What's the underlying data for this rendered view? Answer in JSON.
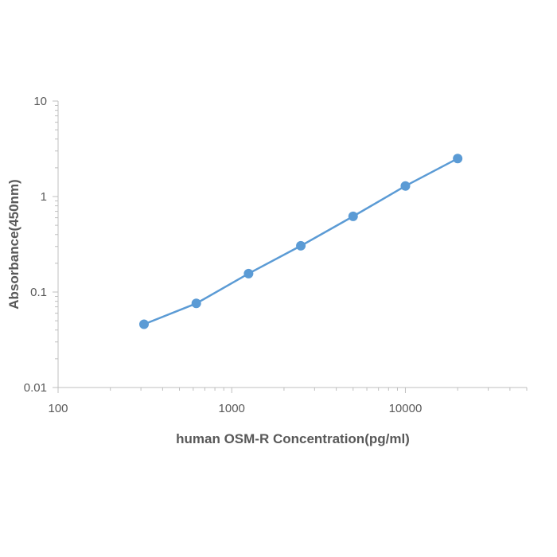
{
  "chart_data": {
    "type": "line",
    "title": "",
    "xlabel": "human OSM-R Concentration(pg/ml)",
    "ylabel": "Absorbance(450nm)",
    "x_scale": "log",
    "y_scale": "log",
    "xlim": [
      100,
      50000
    ],
    "ylim": [
      0.01,
      10
    ],
    "x_ticks": [
      "100",
      "1000",
      "10000"
    ],
    "y_ticks": [
      "0.01",
      "0.1",
      "1",
      "10"
    ],
    "grid": false,
    "legend": "none",
    "series": [
      {
        "color": "#5b9bd5",
        "x": [
          312.5,
          625,
          1250,
          2500,
          5000,
          10000,
          20000
        ],
        "y": [
          0.046,
          0.076,
          0.156,
          0.305,
          0.62,
          1.29,
          2.5
        ]
      }
    ]
  }
}
